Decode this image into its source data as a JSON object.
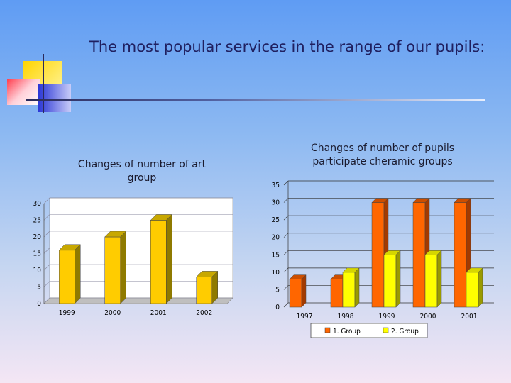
{
  "slide": {
    "title": "The most popular services in the range of our pupils:"
  },
  "colors": {
    "bar_front": "#ffcc00",
    "bar_side": "#8f7a00",
    "bar_top": "#c8a800",
    "group1_front": "#ff6600",
    "group1_side": "#a33a00",
    "group1_top": "#cc4e00",
    "group2_front": "#ffff00",
    "group2_side": "#9a9a00",
    "group2_top": "#d6d600",
    "floor": "#bfbfbf",
    "wall": "#ffffff",
    "grid": "#8a8aa0"
  },
  "chart_data": [
    {
      "type": "bar",
      "title": "Changes of number of art group",
      "categories": [
        "1999",
        "2000",
        "2001",
        "2002"
      ],
      "values": [
        16,
        20,
        25,
        8
      ],
      "ylim": [
        0,
        30
      ],
      "yticks": [
        "0",
        "5",
        "10",
        "15",
        "20",
        "25",
        "30"
      ],
      "grid": true,
      "three_d": true
    },
    {
      "type": "bar",
      "title": "Changes of number of pupils participate cheramic groups",
      "categories": [
        "1997",
        "1998",
        "1999",
        "2000",
        "2001"
      ],
      "series": [
        {
          "name": "1. Group",
          "values": [
            8,
            8,
            30,
            30,
            30
          ]
        },
        {
          "name": "2. Group",
          "values": [
            null,
            10,
            15,
            15,
            10
          ]
        }
      ],
      "ylim": [
        0,
        35
      ],
      "yticks": [
        "0",
        "5",
        "10",
        "15",
        "20",
        "25",
        "30",
        "35"
      ],
      "grid": true,
      "legend": "bottom",
      "three_d": true
    }
  ]
}
